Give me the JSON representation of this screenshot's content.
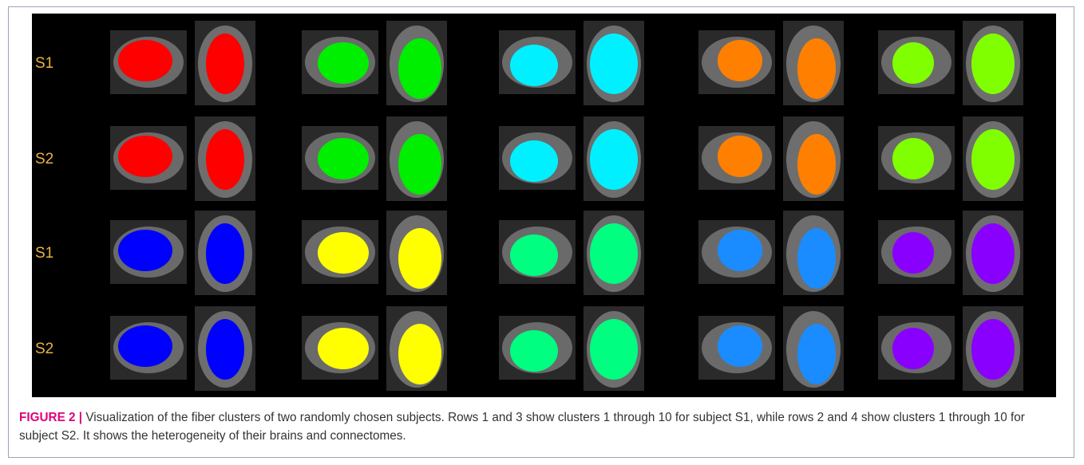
{
  "figure": {
    "row_labels": [
      "S1",
      "S2",
      "S1",
      "S2"
    ]
  },
  "caption": {
    "label": "FIGURE 2 |",
    "text": "Visualization of the fiber clusters of two randomly chosen subjects. Rows 1 and 3 show clusters 1 through 10 for subject S1, while rows 2 and 4 show clusters 1 through 10 for subject S2. It shows the heterogeneity of their brains and connectomes."
  }
}
